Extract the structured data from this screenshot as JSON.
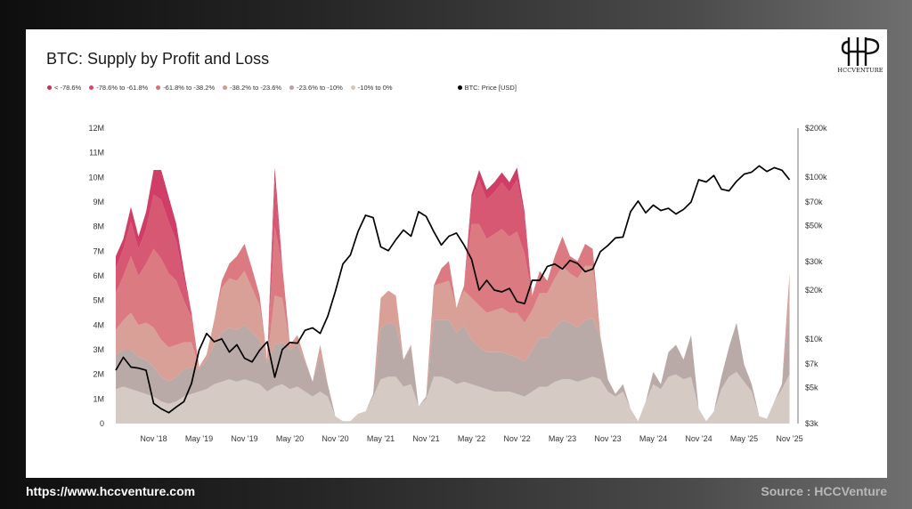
{
  "chart_data": {
    "type": "area",
    "title": "BTC: Supply by Profit and Loss",
    "x_axis": {
      "tick_labels": [
        "Nov '18",
        "May '19",
        "Nov '19",
        "May '20",
        "Nov '20",
        "May '21",
        "Nov '21",
        "May '22",
        "Nov '22",
        "May '23",
        "Nov '23",
        "May '24",
        "Nov '24",
        "May '25",
        "Nov '25"
      ],
      "range": [
        "2018-06",
        "2025-12"
      ]
    },
    "y_axis_left": {
      "tick_labels": [
        "0",
        "1M",
        "2M",
        "3M",
        "4M",
        "5M",
        "6M",
        "7M",
        "8M",
        "9M",
        "10M",
        "11M",
        "12M"
      ],
      "range": [
        0,
        12000000
      ]
    },
    "y_axis_right": {
      "scale": "log",
      "tick_labels": [
        "$3k",
        "$5k",
        "$7k",
        "$10k",
        "$20k",
        "$30k",
        "$50k",
        "$70k",
        "$100k",
        "$200k"
      ],
      "range": [
        3000,
        200000
      ]
    },
    "legend_placement": "top-left",
    "series": [
      {
        "name": "< -78.6%",
        "color": "#cc2d59"
      },
      {
        "name": "-78.6% to -61.8%",
        "color": "#d44a66"
      },
      {
        "name": "-61.8% to -38.2%",
        "color": "#d96f77"
      },
      {
        "name": "-38.2% to -23.6%",
        "color": "#d5988e"
      },
      {
        "name": "-23.6% to -10%",
        "color": "#b4a3a0"
      },
      {
        "name": "-10% to 0%",
        "color": "#d1c7bf"
      },
      {
        "name": "BTC: Price [USD]",
        "color": "#000000"
      }
    ],
    "supply_in_loss": {
      "months": [
        "2018-06",
        "2018-07",
        "2018-08",
        "2018-09",
        "2018-10",
        "2018-11",
        "2018-12",
        "2019-01",
        "2019-02",
        "2019-03",
        "2019-04",
        "2019-05",
        "2019-06",
        "2019-07",
        "2019-08",
        "2019-09",
        "2019-10",
        "2019-11",
        "2019-12",
        "2020-01",
        "2020-02",
        "2020-03",
        "2020-04",
        "2020-05",
        "2020-06",
        "2020-07",
        "2020-08",
        "2020-09",
        "2020-10",
        "2020-11",
        "2020-12",
        "2021-01",
        "2021-02",
        "2021-03",
        "2021-04",
        "2021-05",
        "2021-06",
        "2021-07",
        "2021-08",
        "2021-09",
        "2021-10",
        "2021-11",
        "2021-12",
        "2022-01",
        "2022-02",
        "2022-03",
        "2022-04",
        "2022-05",
        "2022-06",
        "2022-07",
        "2022-08",
        "2022-09",
        "2022-10",
        "2022-11",
        "2022-12",
        "2023-01",
        "2023-02",
        "2023-03",
        "2023-04",
        "2023-05",
        "2023-06",
        "2023-07",
        "2023-08",
        "2023-09",
        "2023-10",
        "2023-11",
        "2023-12",
        "2024-01",
        "2024-02",
        "2024-03",
        "2024-04",
        "2024-05",
        "2024-06",
        "2024-07",
        "2024-08",
        "2024-09",
        "2024-10",
        "2024-11",
        "2024-12",
        "2025-01",
        "2025-02",
        "2025-03",
        "2025-04",
        "2025-05",
        "2025-06",
        "2025-07",
        "2025-08",
        "2025-09",
        "2025-10",
        "2025-11"
      ],
      "total": [
        6.8,
        7.5,
        8.8,
        7.6,
        8.6,
        10.3,
        10.3,
        9.2,
        8.1,
        6.2,
        4.5,
        2.3,
        2.8,
        4.2,
        5.8,
        6.5,
        6.8,
        7.3,
        6.3,
        5.2,
        2.6,
        10.4,
        6.4,
        3.2,
        3.6,
        2.6,
        1.7,
        3.2,
        1.6,
        0.3,
        0.1,
        0.1,
        0.4,
        0.5,
        1.2,
        5.1,
        5.4,
        5.2,
        2.6,
        3.2,
        0.7,
        1.1,
        5.6,
        6.3,
        6.6,
        4.7,
        5.6,
        9.3,
        10.3,
        9.5,
        9.8,
        10.2,
        9.8,
        10.4,
        8.6,
        5.2,
        6.2,
        5.8,
        6.8,
        7.6,
        6.8,
        6.6,
        7.3,
        7.1,
        3.6,
        1.8,
        1.2,
        1.6,
        0.6,
        0.1,
        0.9,
        2.1,
        1.6,
        2.9,
        3.2,
        2.6,
        3.6,
        0.6,
        0.1,
        0.5,
        1.9,
        3.1,
        4.1,
        2.4,
        1.6,
        0.3,
        0.2,
        0.9,
        1.6,
        6.1
      ],
      "bucket_0_to_minus10": [
        1.4,
        1.5,
        1.4,
        1.3,
        1.2,
        1.1,
        0.9,
        0.8,
        0.9,
        1.1,
        1.2,
        1.3,
        1.4,
        1.6,
        1.7,
        1.8,
        1.7,
        1.8,
        1.7,
        1.6,
        1.3,
        1.5,
        1.6,
        1.4,
        1.5,
        1.3,
        1.1,
        1.3,
        1.1,
        0.3,
        0.1,
        0.1,
        0.4,
        0.5,
        1.1,
        1.8,
        1.9,
        1.9,
        1.5,
        1.6,
        0.7,
        1.0,
        1.9,
        1.9,
        1.8,
        1.6,
        1.7,
        1.6,
        1.5,
        1.4,
        1.3,
        1.3,
        1.3,
        1.2,
        1.1,
        1.3,
        1.5,
        1.5,
        1.7,
        1.8,
        1.8,
        1.7,
        1.8,
        1.9,
        1.8,
        1.3,
        1.1,
        1.3,
        0.6,
        0.1,
        0.9,
        1.6,
        1.4,
        1.9,
        2.0,
        1.8,
        1.9,
        0.6,
        0.1,
        0.5,
        1.4,
        1.9,
        2.1,
        1.7,
        1.3,
        0.3,
        0.2,
        0.9,
        1.4,
        2.0
      ],
      "bucket_minus10_to_minus23_6": [
        1.4,
        1.5,
        1.6,
        1.4,
        1.4,
        1.2,
        1.0,
        0.9,
        1.0,
        1.1,
        1.1,
        0.9,
        1.2,
        1.6,
        2.0,
        2.1,
        2.1,
        2.2,
        2.0,
        1.8,
        1.2,
        1.7,
        1.7,
        1.6,
        1.7,
        1.2,
        0.6,
        1.5,
        0.5,
        0,
        0,
        0,
        0,
        0,
        0.1,
        2.1,
        2.2,
        2.1,
        1.1,
        1.5,
        0,
        0.1,
        2.3,
        2.3,
        2.4,
        2.1,
        2.3,
        1.8,
        1.6,
        1.5,
        1.6,
        1.6,
        1.5,
        1.5,
        1.4,
        1.7,
        2.0,
        2.0,
        2.2,
        2.4,
        2.3,
        2.2,
        2.4,
        2.4,
        1.7,
        0.5,
        0.1,
        0.3,
        0,
        0,
        0,
        0.5,
        0.2,
        1.0,
        1.2,
        0.8,
        1.7,
        0,
        0,
        0,
        0.5,
        1.2,
        2.0,
        0.7,
        0.3,
        0,
        0,
        0,
        0.2,
        3.0
      ],
      "bucket_minus23_6_to_minus38_2": [
        1.0,
        1.2,
        1.5,
        1.3,
        1.5,
        1.6,
        1.5,
        1.4,
        1.3,
        1.1,
        1.0,
        0.1,
        0.2,
        1.0,
        1.8,
        2.0,
        2.0,
        2.2,
        1.8,
        1.4,
        0.1,
        2.0,
        1.8,
        0.2,
        0.4,
        0.1,
        0,
        0.4,
        0,
        0,
        0,
        0,
        0,
        0,
        0,
        1.2,
        1.3,
        1.2,
        0,
        0.1,
        0,
        0,
        1.4,
        1.5,
        1.6,
        1.0,
        1.4,
        1.7,
        1.7,
        1.6,
        1.7,
        1.8,
        1.7,
        1.8,
        1.6,
        1.6,
        1.8,
        1.8,
        2.0,
        2.2,
        2.0,
        2.0,
        2.2,
        2.1,
        0.1,
        0,
        0,
        0,
        0,
        0,
        0,
        0,
        0,
        0,
        0,
        0,
        0,
        0,
        0,
        0,
        0,
        0,
        0,
        0,
        0,
        0,
        0,
        0,
        0,
        1.1
      ],
      "bucket_minus38_2_to_minus61_8": [
        1.5,
        1.8,
        2.3,
        2.0,
        2.4,
        3.2,
        3.3,
        3.0,
        2.6,
        1.7,
        1.0,
        0,
        0,
        0,
        0.3,
        0.6,
        1.0,
        1.1,
        0.8,
        0.4,
        0,
        2.8,
        1.3,
        0,
        0,
        0,
        0,
        0,
        0,
        0,
        0,
        0,
        0,
        0,
        0,
        0,
        0,
        0,
        0,
        0,
        0,
        0,
        0,
        0.6,
        0.8,
        0,
        0.2,
        3.0,
        3.3,
        3.0,
        3.1,
        3.2,
        3.1,
        3.3,
        2.8,
        0.6,
        0.9,
        0.5,
        0.9,
        1.2,
        0.7,
        0.7,
        0.9,
        0.7,
        0,
        0,
        0,
        0,
        0,
        0,
        0,
        0,
        0,
        0,
        0,
        0,
        0,
        0,
        0,
        0,
        0,
        0,
        0,
        0,
        0,
        0,
        0,
        0,
        0,
        0
      ],
      "bucket_minus61_8_to_minus78_6": [
        1.0,
        1.1,
        1.4,
        1.1,
        1.4,
        2.2,
        2.4,
        2.1,
        1.6,
        0.9,
        0.2,
        0,
        0,
        0,
        0,
        0,
        0,
        0,
        0,
        0,
        0,
        1.9,
        0,
        0,
        0,
        0,
        0,
        0,
        0,
        0,
        0,
        0,
        0,
        0,
        0,
        0,
        0,
        0,
        0,
        0,
        0,
        0,
        0,
        0,
        0,
        0,
        0,
        1.0,
        1.8,
        1.6,
        1.7,
        1.9,
        1.8,
        2.1,
        1.5,
        0,
        0,
        0,
        0,
        0,
        0,
        0,
        0,
        0,
        0,
        0,
        0,
        0,
        0,
        0,
        0,
        0,
        0,
        0,
        0,
        0,
        0,
        0,
        0,
        0,
        0,
        0,
        0,
        0,
        0,
        0,
        0,
        0,
        0,
        0
      ],
      "bucket_below_minus78_6": [
        0.5,
        0.4,
        0.6,
        0.5,
        0.7,
        1.0,
        1.2,
        1.0,
        0.7,
        0.3,
        0,
        0,
        0,
        0,
        0,
        0,
        0,
        0,
        0,
        0,
        0,
        0.5,
        0,
        0,
        0,
        0,
        0,
        0,
        0,
        0,
        0,
        0,
        0,
        0,
        0,
        0,
        0,
        0,
        0,
        0,
        0,
        0,
        0,
        0,
        0,
        0,
        0,
        0.2,
        0.4,
        0.4,
        0.4,
        0.4,
        0.4,
        0.5,
        0.2,
        0,
        0,
        0,
        0,
        0,
        0,
        0,
        0,
        0,
        0,
        0,
        0,
        0,
        0,
        0,
        0,
        0,
        0,
        0,
        0,
        0,
        0,
        0,
        0,
        0,
        0,
        0,
        0,
        0,
        0,
        0,
        0,
        0,
        0,
        0
      ]
    },
    "btc_price_usd": {
      "months": [
        "2018-06",
        "2018-07",
        "2018-08",
        "2018-09",
        "2018-10",
        "2018-11",
        "2018-12",
        "2019-01",
        "2019-02",
        "2019-03",
        "2019-04",
        "2019-05",
        "2019-06",
        "2019-07",
        "2019-08",
        "2019-09",
        "2019-10",
        "2019-11",
        "2019-12",
        "2020-01",
        "2020-02",
        "2020-03",
        "2020-04",
        "2020-05",
        "2020-06",
        "2020-07",
        "2020-08",
        "2020-09",
        "2020-10",
        "2020-11",
        "2020-12",
        "2021-01",
        "2021-02",
        "2021-03",
        "2021-04",
        "2021-05",
        "2021-06",
        "2021-07",
        "2021-08",
        "2021-09",
        "2021-10",
        "2021-11",
        "2021-12",
        "2022-01",
        "2022-02",
        "2022-03",
        "2022-04",
        "2022-05",
        "2022-06",
        "2022-07",
        "2022-08",
        "2022-09",
        "2022-10",
        "2022-11",
        "2022-12",
        "2023-01",
        "2023-02",
        "2023-03",
        "2023-04",
        "2023-05",
        "2023-06",
        "2023-07",
        "2023-08",
        "2023-09",
        "2023-10",
        "2023-11",
        "2023-12",
        "2024-01",
        "2024-02",
        "2024-03",
        "2024-04",
        "2024-05",
        "2024-06",
        "2024-07",
        "2024-08",
        "2024-09",
        "2024-10",
        "2024-11",
        "2024-12",
        "2025-01",
        "2025-02",
        "2025-03",
        "2025-04",
        "2025-05",
        "2025-06",
        "2025-07",
        "2025-08",
        "2025-09",
        "2025-10",
        "2025-11"
      ],
      "values": [
        6400,
        7700,
        6700,
        6600,
        6400,
        4000,
        3700,
        3500,
        3800,
        4100,
        5300,
        8500,
        10800,
        9600,
        10000,
        8300,
        9200,
        7600,
        7200,
        8500,
        9600,
        5800,
        8600,
        9500,
        9400,
        11300,
        11700,
        10800,
        13800,
        19600,
        29000,
        33000,
        46000,
        58000,
        56000,
        37000,
        35000,
        41000,
        47000,
        43000,
        61000,
        57000,
        46000,
        38000,
        43000,
        45000,
        38000,
        31000,
        20000,
        23000,
        20000,
        19500,
        20500,
        17000,
        16500,
        23000,
        23000,
        28000,
        29000,
        27000,
        30500,
        29200,
        26000,
        27000,
        34500,
        37700,
        42000,
        42500,
        61000,
        71000,
        60000,
        67000,
        62000,
        64000,
        59000,
        63000,
        70000,
        96000,
        93000,
        102000,
        84000,
        82000,
        94000,
        104000,
        107000,
        117000,
        108000,
        114000,
        110000,
        96000
      ]
    }
  },
  "footer": {
    "url": "https://www.hccventure.com",
    "source": "Source : HCCVenture"
  },
  "brand": {
    "logo_text": "HCCVENTURE"
  }
}
